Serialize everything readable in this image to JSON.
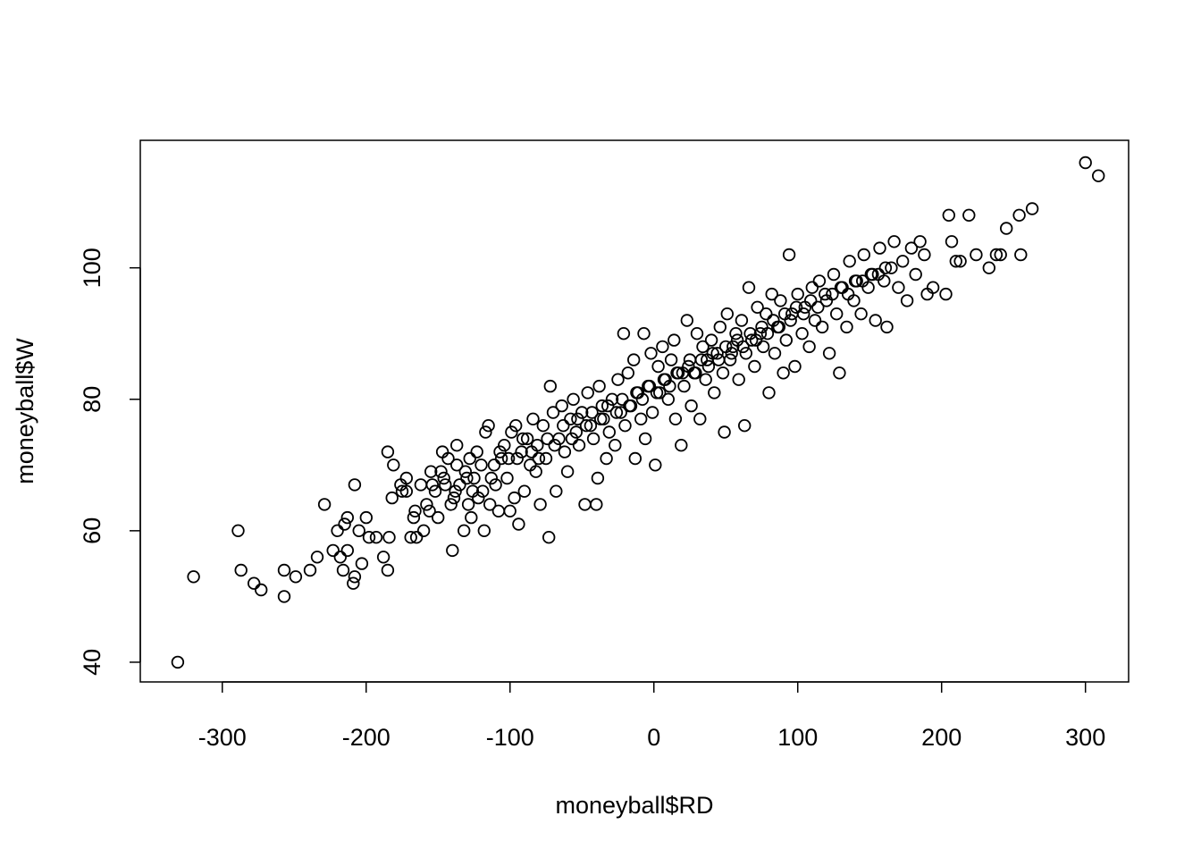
{
  "chart_data": {
    "type": "scatter",
    "title": "",
    "xlabel": "moneyball$RD",
    "ylabel": "moneyball$W",
    "xlim": [
      -357,
      330
    ],
    "ylim": [
      37.0,
      119.4
    ],
    "xticks": [
      -300,
      -200,
      -100,
      0,
      100,
      200,
      300
    ],
    "yticks": [
      40,
      60,
      80,
      100
    ],
    "xtick_labels": [
      "-300",
      "-200",
      "-100",
      "0",
      "100",
      "200",
      "300"
    ],
    "ytick_labels": [
      "40",
      "60",
      "80",
      "100"
    ],
    "grid": false,
    "legend": "none",
    "marker": "open-circle",
    "points": [
      [
        -331,
        40
      ],
      [
        -320,
        53
      ],
      [
        -289,
        60
      ],
      [
        -287,
        54
      ],
      [
        -278,
        52
      ],
      [
        -273,
        51
      ],
      [
        -257,
        54
      ],
      [
        -257,
        50
      ],
      [
        -249,
        53
      ],
      [
        -239,
        54
      ],
      [
        -234,
        56
      ],
      [
        -229,
        64
      ],
      [
        -223,
        57
      ],
      [
        -220,
        60
      ],
      [
        -218,
        56
      ],
      [
        -216,
        54
      ],
      [
        -215,
        61
      ],
      [
        -213,
        62
      ],
      [
        -213,
        57
      ],
      [
        -208,
        53
      ],
      [
        -209,
        52
      ],
      [
        -208,
        67
      ],
      [
        -205,
        60
      ],
      [
        -203,
        55
      ],
      [
        -200,
        62
      ],
      [
        -198,
        59
      ],
      [
        -193,
        59
      ],
      [
        -188,
        56
      ],
      [
        -185,
        54
      ],
      [
        -185,
        72
      ],
      [
        -184,
        59
      ],
      [
        -182,
        65
      ],
      [
        -181,
        70
      ],
      [
        -176,
        67
      ],
      [
        -172,
        66
      ],
      [
        -172,
        68
      ],
      [
        -169,
        59
      ],
      [
        -167,
        62
      ],
      [
        -165,
        59
      ],
      [
        -162,
        67
      ],
      [
        -160,
        60
      ],
      [
        -158,
        64
      ],
      [
        -156,
        63
      ],
      [
        -155,
        69
      ],
      [
        -152,
        66
      ],
      [
        -150,
        62
      ],
      [
        -148,
        69
      ],
      [
        -147,
        72
      ],
      [
        -145,
        67
      ],
      [
        -143,
        71
      ],
      [
        -141,
        64
      ],
      [
        -140,
        57
      ],
      [
        -139,
        65
      ],
      [
        -137,
        70
      ],
      [
        -137,
        73
      ],
      [
        -135,
        67
      ],
      [
        -132,
        60
      ],
      [
        -131,
        69
      ],
      [
        -129,
        64
      ],
      [
        -128,
        71
      ],
      [
        -127,
        62
      ],
      [
        -125,
        68
      ],
      [
        -123,
        72
      ],
      [
        -122,
        65
      ],
      [
        -120,
        70
      ],
      [
        -118,
        60
      ],
      [
        -117,
        75
      ],
      [
        -115,
        76
      ],
      [
        -114,
        64
      ],
      [
        -111,
        70
      ],
      [
        -110,
        67
      ],
      [
        -108,
        63
      ],
      [
        -106,
        71
      ],
      [
        -104,
        73
      ],
      [
        -102,
        68
      ],
      [
        -100,
        63
      ],
      [
        -99,
        75
      ],
      [
        -97,
        65
      ],
      [
        -96,
        76
      ],
      [
        -94,
        61
      ],
      [
        -92,
        72
      ],
      [
        -90,
        66
      ],
      [
        -88,
        74
      ],
      [
        -86,
        70
      ],
      [
        -84,
        77
      ],
      [
        -82,
        69
      ],
      [
        -81,
        73
      ],
      [
        -79,
        64
      ],
      [
        -77,
        76
      ],
      [
        -75,
        71
      ],
      [
        -73,
        59
      ],
      [
        -72,
        82
      ],
      [
        -70,
        78
      ],
      [
        -68,
        66
      ],
      [
        -66,
        74
      ],
      [
        -64,
        79
      ],
      [
        -62,
        72
      ],
      [
        -60,
        69
      ],
      [
        -58,
        77
      ],
      [
        -56,
        80
      ],
      [
        -54,
        75
      ],
      [
        -52,
        73
      ],
      [
        -50,
        78
      ],
      [
        -48,
        64
      ],
      [
        -46,
        81
      ],
      [
        -44,
        76
      ],
      [
        -42,
        74
      ],
      [
        -40,
        64
      ],
      [
        -39,
        68
      ],
      [
        -38,
        82
      ],
      [
        -36,
        79
      ],
      [
        -35,
        77
      ],
      [
        -33,
        71
      ],
      [
        -31,
        75
      ],
      [
        -29,
        80
      ],
      [
        -27,
        73
      ],
      [
        -25,
        83
      ],
      [
        -23,
        78
      ],
      [
        -21,
        90
      ],
      [
        -20,
        76
      ],
      [
        -18,
        84
      ],
      [
        -16,
        79
      ],
      [
        -14,
        86
      ],
      [
        -13,
        71
      ],
      [
        -11,
        81
      ],
      [
        -9,
        77
      ],
      [
        -7,
        90
      ],
      [
        -6,
        74
      ],
      [
        -4,
        82
      ],
      [
        -2,
        87
      ],
      [
        -1,
        78
      ],
      [
        1,
        70
      ],
      [
        3,
        85
      ],
      [
        4,
        81
      ],
      [
        6,
        88
      ],
      [
        8,
        83
      ],
      [
        10,
        80
      ],
      [
        12,
        86
      ],
      [
        14,
        89
      ],
      [
        15,
        77
      ],
      [
        17,
        84
      ],
      [
        19,
        73
      ],
      [
        21,
        82
      ],
      [
        23,
        92
      ],
      [
        25,
        86
      ],
      [
        26,
        79
      ],
      [
        28,
        84
      ],
      [
        30,
        90
      ],
      [
        32,
        77
      ],
      [
        34,
        88
      ],
      [
        36,
        83
      ],
      [
        38,
        85
      ],
      [
        40,
        89
      ],
      [
        42,
        81
      ],
      [
        44,
        87
      ],
      [
        46,
        91
      ],
      [
        48,
        84
      ],
      [
        49,
        75
      ],
      [
        51,
        93
      ],
      [
        53,
        86
      ],
      [
        55,
        88
      ],
      [
        57,
        90
      ],
      [
        59,
        83
      ],
      [
        61,
        92
      ],
      [
        63,
        76
      ],
      [
        64,
        87
      ],
      [
        66,
        97
      ],
      [
        68,
        89
      ],
      [
        70,
        85
      ],
      [
        72,
        94
      ],
      [
        74,
        90
      ],
      [
        76,
        88
      ],
      [
        78,
        93
      ],
      [
        80,
        81
      ],
      [
        82,
        96
      ],
      [
        84,
        87
      ],
      [
        86,
        91
      ],
      [
        88,
        95
      ],
      [
        90,
        84
      ],
      [
        92,
        89
      ],
      [
        94,
        102
      ],
      [
        96,
        93
      ],
      [
        98,
        85
      ],
      [
        100,
        96
      ],
      [
        103,
        90
      ],
      [
        105,
        94
      ],
      [
        108,
        88
      ],
      [
        110,
        97
      ],
      [
        112,
        92
      ],
      [
        115,
        98
      ],
      [
        117,
        91
      ],
      [
        120,
        95
      ],
      [
        122,
        87
      ],
      [
        125,
        99
      ],
      [
        127,
        93
      ],
      [
        129,
        84
      ],
      [
        131,
        97
      ],
      [
        134,
        91
      ],
      [
        136,
        101
      ],
      [
        139,
        95
      ],
      [
        141,
        98
      ],
      [
        144,
        93
      ],
      [
        146,
        102
      ],
      [
        149,
        97
      ],
      [
        152,
        99
      ],
      [
        154,
        92
      ],
      [
        157,
        103
      ],
      [
        160,
        98
      ],
      [
        162,
        91
      ],
      [
        165,
        100
      ],
      [
        167,
        104
      ],
      [
        170,
        97
      ],
      [
        173,
        101
      ],
      [
        176,
        95
      ],
      [
        179,
        103
      ],
      [
        182,
        99
      ],
      [
        185,
        104
      ],
      [
        188,
        102
      ],
      [
        190,
        96
      ],
      [
        194,
        97
      ],
      [
        203,
        96
      ],
      [
        205,
        108
      ],
      [
        207,
        104
      ],
      [
        210,
        101
      ],
      [
        213,
        101
      ],
      [
        219,
        108
      ],
      [
        224,
        102
      ],
      [
        233,
        100
      ],
      [
        238,
        102
      ],
      [
        241,
        102
      ],
      [
        245,
        106
      ],
      [
        254,
        108
      ],
      [
        255,
        102
      ],
      [
        263,
        109
      ],
      [
        300,
        116
      ],
      [
        309,
        114
      ],
      [
        -175,
        66
      ],
      [
        -166,
        63
      ],
      [
        -154,
        67
      ],
      [
        -146,
        68
      ],
      [
        -138,
        66
      ],
      [
        -130,
        68
      ],
      [
        -126,
        66
      ],
      [
        -119,
        66
      ],
      [
        -113,
        68
      ],
      [
        -107,
        72
      ],
      [
        -101,
        71
      ],
      [
        -95,
        71
      ],
      [
        -91,
        74
      ],
      [
        -85,
        72
      ],
      [
        -80,
        71
      ],
      [
        -74,
        74
      ],
      [
        -69,
        73
      ],
      [
        -63,
        76
      ],
      [
        -57,
        74
      ],
      [
        -53,
        77
      ],
      [
        -47,
        76
      ],
      [
        -43,
        78
      ],
      [
        -37,
        77
      ],
      [
        -32,
        79
      ],
      [
        -26,
        78
      ],
      [
        -22,
        80
      ],
      [
        -17,
        79
      ],
      [
        -12,
        81
      ],
      [
        -8,
        80
      ],
      [
        -3,
        82
      ],
      [
        2,
        81
      ],
      [
        7,
        83
      ],
      [
        11,
        82
      ],
      [
        16,
        84
      ],
      [
        20,
        84
      ],
      [
        24,
        85
      ],
      [
        29,
        84
      ],
      [
        33,
        86
      ],
      [
        37,
        86
      ],
      [
        41,
        87
      ],
      [
        45,
        86
      ],
      [
        50,
        88
      ],
      [
        54,
        87
      ],
      [
        58,
        89
      ],
      [
        62,
        88
      ],
      [
        67,
        90
      ],
      [
        71,
        89
      ],
      [
        75,
        91
      ],
      [
        79,
        90
      ],
      [
        83,
        92
      ],
      [
        87,
        91
      ],
      [
        91,
        93
      ],
      [
        95,
        92
      ],
      [
        99,
        94
      ],
      [
        104,
        93
      ],
      [
        109,
        95
      ],
      [
        114,
        94
      ],
      [
        119,
        96
      ],
      [
        124,
        96
      ],
      [
        130,
        97
      ],
      [
        135,
        96
      ],
      [
        140,
        98
      ],
      [
        145,
        98
      ],
      [
        151,
        99
      ],
      [
        156,
        99
      ],
      [
        161,
        100
      ]
    ]
  }
}
